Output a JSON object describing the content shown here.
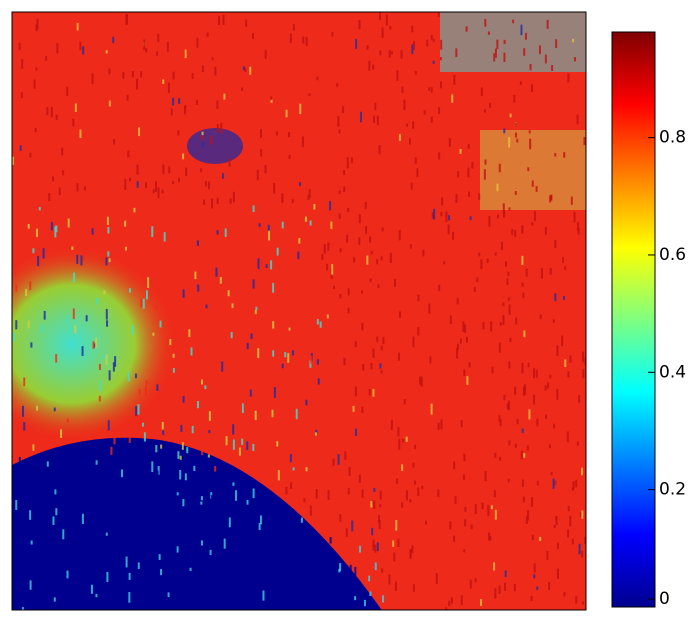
{
  "chart_data": {
    "type": "heatmap",
    "colormap": "jet",
    "colorbar": {
      "lim": [
        0,
        0.98
      ],
      "ticks": [
        0,
        0.2,
        0.4,
        0.6,
        0.8
      ]
    }
  }
}
